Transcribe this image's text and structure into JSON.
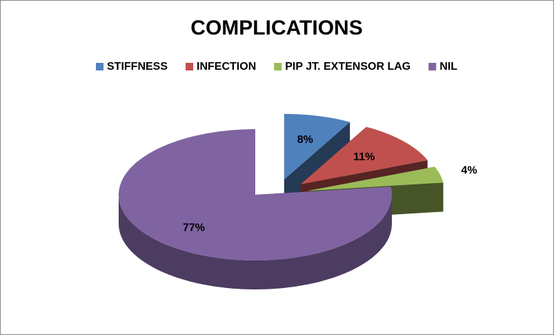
{
  "chart_data": {
    "type": "pie3d",
    "title": "COMPLICATIONS",
    "categories": [
      "STIFFNESS",
      "INFECTION",
      "PIP JT. EXTENSOR LAG",
      "NIL"
    ],
    "values": [
      8,
      11,
      4,
      77
    ],
    "value_labels": [
      "8%",
      "11%",
      "4%",
      "77%"
    ],
    "colors": [
      "#4f81bd",
      "#c0504d",
      "#9bbb59",
      "#8064a2"
    ],
    "legend": "top"
  }
}
